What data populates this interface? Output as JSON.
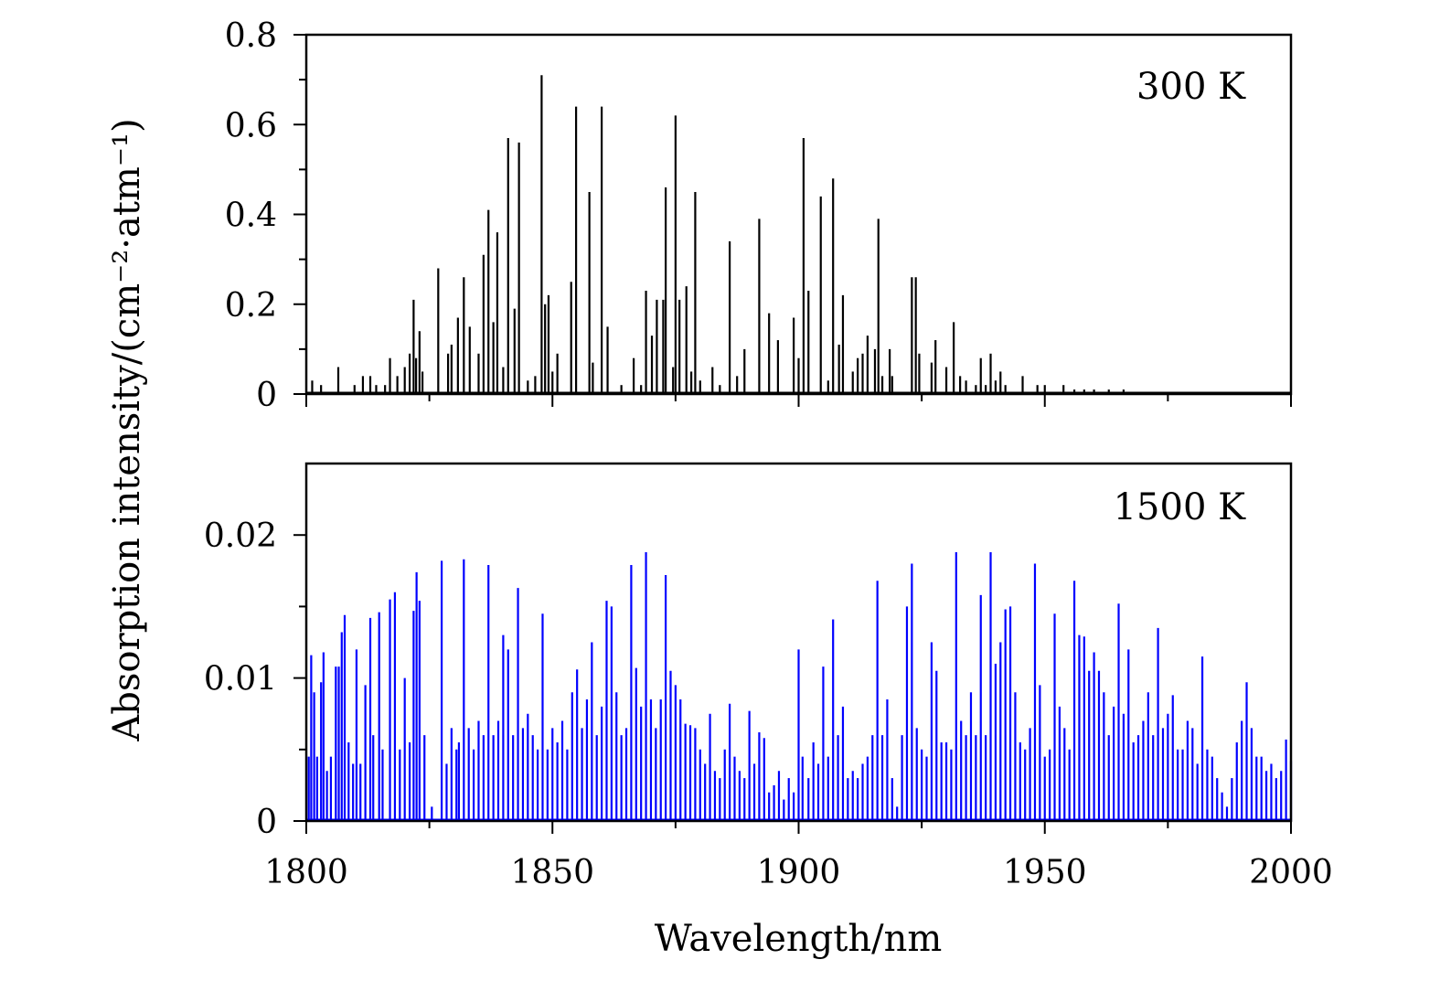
{
  "chart_data": [
    {
      "type": "line",
      "temperature_label": "300 K",
      "line_color": "#000000",
      "xlim": [
        1800,
        2000
      ],
      "ylim": [
        0,
        0.8
      ],
      "yticks": [
        "0",
        "0.2",
        "0.4",
        "0.6",
        "0.8"
      ],
      "ylabel": "",
      "xlabel": "",
      "peaks": [
        [
          1801.2,
          0.03
        ],
        [
          1803.0,
          0.02
        ],
        [
          1806.5,
          0.06
        ],
        [
          1809.8,
          0.02
        ],
        [
          1811.5,
          0.04
        ],
        [
          1813.0,
          0.04
        ],
        [
          1814.2,
          0.02
        ],
        [
          1816.0,
          0.02
        ],
        [
          1817.0,
          0.08
        ],
        [
          1818.5,
          0.04
        ],
        [
          1820.0,
          0.06
        ],
        [
          1821.0,
          0.09
        ],
        [
          1821.8,
          0.21
        ],
        [
          1822.3,
          0.08
        ],
        [
          1823.0,
          0.14
        ],
        [
          1823.6,
          0.05
        ],
        [
          1826.8,
          0.28
        ],
        [
          1828.8,
          0.09
        ],
        [
          1829.5,
          0.11
        ],
        [
          1830.8,
          0.17
        ],
        [
          1832.0,
          0.26
        ],
        [
          1833.2,
          0.15
        ],
        [
          1835.0,
          0.09
        ],
        [
          1836.0,
          0.31
        ],
        [
          1837.0,
          0.41
        ],
        [
          1838.0,
          0.16
        ],
        [
          1838.8,
          0.36
        ],
        [
          1840.0,
          0.06
        ],
        [
          1841.0,
          0.57
        ],
        [
          1842.3,
          0.19
        ],
        [
          1843.2,
          0.56
        ],
        [
          1845.0,
          0.03
        ],
        [
          1846.5,
          0.04
        ],
        [
          1847.8,
          0.71
        ],
        [
          1848.5,
          0.2
        ],
        [
          1849.2,
          0.22
        ],
        [
          1850.0,
          0.05
        ],
        [
          1851.0,
          0.09
        ],
        [
          1853.8,
          0.25
        ],
        [
          1854.8,
          0.64
        ],
        [
          1857.5,
          0.45
        ],
        [
          1858.2,
          0.07
        ],
        [
          1860.0,
          0.64
        ],
        [
          1861.2,
          0.15
        ],
        [
          1864.0,
          0.02
        ],
        [
          1866.5,
          0.08
        ],
        [
          1868.0,
          0.02
        ],
        [
          1869.0,
          0.23
        ],
        [
          1870.2,
          0.13
        ],
        [
          1871.2,
          0.21
        ],
        [
          1872.5,
          0.21
        ],
        [
          1873.0,
          0.46
        ],
        [
          1874.5,
          0.06
        ],
        [
          1875.0,
          0.62
        ],
        [
          1875.8,
          0.21
        ],
        [
          1877.2,
          0.24
        ],
        [
          1878.2,
          0.05
        ],
        [
          1879.0,
          0.45
        ],
        [
          1880.0,
          0.03
        ],
        [
          1882.5,
          0.06
        ],
        [
          1884.0,
          0.02
        ],
        [
          1886.0,
          0.34
        ],
        [
          1887.5,
          0.04
        ],
        [
          1889.0,
          0.1
        ],
        [
          1892.0,
          0.39
        ],
        [
          1894.0,
          0.18
        ],
        [
          1895.8,
          0.12
        ],
        [
          1899.0,
          0.17
        ],
        [
          1900.0,
          0.08
        ],
        [
          1901.0,
          0.57
        ],
        [
          1902.0,
          0.23
        ],
        [
          1904.5,
          0.44
        ],
        [
          1906.0,
          0.03
        ],
        [
          1907.0,
          0.48
        ],
        [
          1908.2,
          0.11
        ],
        [
          1909.0,
          0.22
        ],
        [
          1911.0,
          0.05
        ],
        [
          1912.0,
          0.08
        ],
        [
          1913.0,
          0.09
        ],
        [
          1914.0,
          0.13
        ],
        [
          1915.5,
          0.1
        ],
        [
          1916.2,
          0.39
        ],
        [
          1917.0,
          0.04
        ],
        [
          1918.5,
          0.1
        ],
        [
          1919.0,
          0.04
        ],
        [
          1923.0,
          0.26
        ],
        [
          1923.8,
          0.26
        ],
        [
          1924.5,
          0.09
        ],
        [
          1927.0,
          0.07
        ],
        [
          1927.8,
          0.12
        ],
        [
          1930.0,
          0.06
        ],
        [
          1931.5,
          0.16
        ],
        [
          1932.8,
          0.04
        ],
        [
          1934.0,
          0.03
        ],
        [
          1936.0,
          0.02
        ],
        [
          1937.0,
          0.08
        ],
        [
          1938.0,
          0.02
        ],
        [
          1939.0,
          0.09
        ],
        [
          1940.0,
          0.03
        ],
        [
          1941.0,
          0.05
        ],
        [
          1942.0,
          0.02
        ],
        [
          1945.5,
          0.04
        ],
        [
          1948.5,
          0.02
        ],
        [
          1950.0,
          0.02
        ],
        [
          1953.8,
          0.02
        ],
        [
          1956.0,
          0.01
        ],
        [
          1958.0,
          0.01
        ],
        [
          1960.0,
          0.01
        ],
        [
          1963.0,
          0.01
        ],
        [
          1966.0,
          0.01
        ],
        [
          1972.0,
          0.005
        ]
      ]
    },
    {
      "type": "line",
      "temperature_label": "1500 K",
      "line_color": "#0000ff",
      "xlim": [
        1800,
        2000
      ],
      "ylim": [
        0,
        0.025
      ],
      "yticks": [
        "0",
        "0.01",
        "0.02"
      ],
      "ylabel": "Absorption intensity/(cm⁻²·atm⁻¹)",
      "xlabel": "Wavelength/nm",
      "xticks": [
        "1800",
        "1850",
        "1900",
        "1950",
        "2000"
      ],
      "peaks": [
        [
          1800.5,
          0.0045
        ],
        [
          1801.0,
          0.0116
        ],
        [
          1801.6,
          0.009
        ],
        [
          1802.2,
          0.0045
        ],
        [
          1803.0,
          0.0097
        ],
        [
          1803.5,
          0.0118
        ],
        [
          1804.2,
          0.0035
        ],
        [
          1805.0,
          0.0045
        ],
        [
          1806.0,
          0.0108
        ],
        [
          1806.6,
          0.0108
        ],
        [
          1807.2,
          0.0132
        ],
        [
          1807.8,
          0.0144
        ],
        [
          1808.6,
          0.0055
        ],
        [
          1809.5,
          0.004
        ],
        [
          1810.2,
          0.012
        ],
        [
          1811.0,
          0.004
        ],
        [
          1812.0,
          0.0095
        ],
        [
          1813.0,
          0.0142
        ],
        [
          1813.6,
          0.006
        ],
        [
          1814.8,
          0.0146
        ],
        [
          1815.5,
          0.005
        ],
        [
          1817.0,
          0.0155
        ],
        [
          1818.0,
          0.016
        ],
        [
          1819.0,
          0.005
        ],
        [
          1820.0,
          0.01
        ],
        [
          1821.0,
          0.0055
        ],
        [
          1821.8,
          0.0147
        ],
        [
          1822.4,
          0.0174
        ],
        [
          1823.0,
          0.0154
        ],
        [
          1824.0,
          0.006
        ],
        [
          1825.5,
          0.001
        ],
        [
          1827.5,
          0.0182
        ],
        [
          1828.5,
          0.004
        ],
        [
          1829.5,
          0.0065
        ],
        [
          1830.5,
          0.005
        ],
        [
          1831.0,
          0.0055
        ],
        [
          1832.0,
          0.0183
        ],
        [
          1833.0,
          0.0065
        ],
        [
          1834.0,
          0.005
        ],
        [
          1835.0,
          0.007
        ],
        [
          1836.0,
          0.006
        ],
        [
          1837.0,
          0.0179
        ],
        [
          1838.0,
          0.006
        ],
        [
          1839.0,
          0.007
        ],
        [
          1840.0,
          0.013
        ],
        [
          1841.0,
          0.012
        ],
        [
          1842.0,
          0.006
        ],
        [
          1843.0,
          0.0163
        ],
        [
          1844.0,
          0.0065
        ],
        [
          1845.0,
          0.0075
        ],
        [
          1846.0,
          0.006
        ],
        [
          1847.0,
          0.005
        ],
        [
          1848.0,
          0.0145
        ],
        [
          1849.0,
          0.005
        ],
        [
          1850.0,
          0.0065
        ],
        [
          1851.0,
          0.0055
        ],
        [
          1852.0,
          0.007
        ],
        [
          1853.0,
          0.005
        ],
        [
          1854.0,
          0.009
        ],
        [
          1855.0,
          0.0106
        ],
        [
          1856.0,
          0.0065
        ],
        [
          1857.0,
          0.0085
        ],
        [
          1858.0,
          0.0125
        ],
        [
          1859.0,
          0.006
        ],
        [
          1860.0,
          0.008
        ],
        [
          1861.0,
          0.0154
        ],
        [
          1862.0,
          0.015
        ],
        [
          1863.0,
          0.009
        ],
        [
          1864.0,
          0.006
        ],
        [
          1865.0,
          0.0065
        ],
        [
          1866.0,
          0.0179
        ],
        [
          1867.0,
          0.0107
        ],
        [
          1868.0,
          0.008
        ],
        [
          1869.0,
          0.0188
        ],
        [
          1870.0,
          0.0085
        ],
        [
          1871.0,
          0.0065
        ],
        [
          1872.0,
          0.0085
        ],
        [
          1873.0,
          0.0172
        ],
        [
          1874.0,
          0.0105
        ],
        [
          1875.0,
          0.0095
        ],
        [
          1876.0,
          0.0085
        ],
        [
          1877.0,
          0.0068
        ],
        [
          1878.0,
          0.0067
        ],
        [
          1879.0,
          0.0065
        ],
        [
          1880.0,
          0.005
        ],
        [
          1881.0,
          0.004
        ],
        [
          1882.0,
          0.0075
        ],
        [
          1883.0,
          0.0035
        ],
        [
          1884.0,
          0.003
        ],
        [
          1885.0,
          0.005
        ],
        [
          1886.0,
          0.0082
        ],
        [
          1887.0,
          0.0045
        ],
        [
          1888.0,
          0.0035
        ],
        [
          1889.0,
          0.003
        ],
        [
          1890.0,
          0.0077
        ],
        [
          1891.0,
          0.004
        ],
        [
          1892.0,
          0.0062
        ],
        [
          1893.0,
          0.0058
        ],
        [
          1894.0,
          0.002
        ],
        [
          1895.0,
          0.0025
        ],
        [
          1896.0,
          0.0035
        ],
        [
          1897.0,
          0.0015
        ],
        [
          1898.0,
          0.003
        ],
        [
          1899.0,
          0.002
        ],
        [
          1900.0,
          0.012
        ],
        [
          1900.8,
          0.0045
        ],
        [
          1902.0,
          0.003
        ],
        [
          1903.0,
          0.0055
        ],
        [
          1904.0,
          0.004
        ],
        [
          1905.0,
          0.0108
        ],
        [
          1906.0,
          0.0045
        ],
        [
          1907.0,
          0.0141
        ],
        [
          1908.0,
          0.006
        ],
        [
          1909.0,
          0.008
        ],
        [
          1910.0,
          0.003
        ],
        [
          1911.0,
          0.0035
        ],
        [
          1912.0,
          0.003
        ],
        [
          1913.0,
          0.004
        ],
        [
          1914.0,
          0.0045
        ],
        [
          1915.0,
          0.006
        ],
        [
          1916.0,
          0.0168
        ],
        [
          1917.0,
          0.006
        ],
        [
          1918.0,
          0.0085
        ],
        [
          1919.0,
          0.003
        ],
        [
          1920.0,
          0.001
        ],
        [
          1921.0,
          0.006
        ],
        [
          1922.0,
          0.015
        ],
        [
          1923.0,
          0.018
        ],
        [
          1924.0,
          0.0065
        ],
        [
          1925.0,
          0.005
        ],
        [
          1926.0,
          0.0045
        ],
        [
          1927.0,
          0.0125
        ],
        [
          1928.0,
          0.0105
        ],
        [
          1929.0,
          0.0055
        ],
        [
          1930.0,
          0.0055
        ],
        [
          1931.0,
          0.005
        ],
        [
          1932.0,
          0.0188
        ],
        [
          1933.0,
          0.007
        ],
        [
          1934.0,
          0.006
        ],
        [
          1935.0,
          0.009
        ],
        [
          1936.0,
          0.006
        ],
        [
          1937.0,
          0.0158
        ],
        [
          1938.0,
          0.006
        ],
        [
          1939.0,
          0.0188
        ],
        [
          1940.0,
          0.011
        ],
        [
          1941.0,
          0.0125
        ],
        [
          1942.0,
          0.0148
        ],
        [
          1943.0,
          0.015
        ],
        [
          1944.0,
          0.009
        ],
        [
          1945.0,
          0.0055
        ],
        [
          1946.0,
          0.005
        ],
        [
          1947.0,
          0.0065
        ],
        [
          1948.0,
          0.018
        ],
        [
          1949.0,
          0.0095
        ],
        [
          1950.0,
          0.0045
        ],
        [
          1951.0,
          0.005
        ],
        [
          1952.0,
          0.0145
        ],
        [
          1953.0,
          0.008
        ],
        [
          1954.0,
          0.0065
        ],
        [
          1955.0,
          0.005
        ],
        [
          1956.0,
          0.0168
        ],
        [
          1957.0,
          0.013
        ],
        [
          1958.0,
          0.0129
        ],
        [
          1959.0,
          0.0105
        ],
        [
          1960.0,
          0.0118
        ],
        [
          1961.0,
          0.0105
        ],
        [
          1962.0,
          0.009
        ],
        [
          1963.0,
          0.006
        ],
        [
          1964.0,
          0.008
        ],
        [
          1965.0,
          0.0152
        ],
        [
          1966.0,
          0.0075
        ],
        [
          1967.0,
          0.012
        ],
        [
          1968.0,
          0.0055
        ],
        [
          1969.0,
          0.006
        ],
        [
          1970.0,
          0.007
        ],
        [
          1971.0,
          0.009
        ],
        [
          1972.0,
          0.006
        ],
        [
          1973.0,
          0.0135
        ],
        [
          1974.0,
          0.0065
        ],
        [
          1975.0,
          0.0075
        ],
        [
          1976.0,
          0.0088
        ],
        [
          1977.0,
          0.005
        ],
        [
          1978.0,
          0.005
        ],
        [
          1979.0,
          0.007
        ],
        [
          1980.0,
          0.0065
        ],
        [
          1981.0,
          0.004
        ],
        [
          1982.0,
          0.0115
        ],
        [
          1983.0,
          0.005
        ],
        [
          1984.0,
          0.0045
        ],
        [
          1985.0,
          0.003
        ],
        [
          1986.0,
          0.002
        ],
        [
          1987.0,
          0.001
        ],
        [
          1988.0,
          0.003
        ],
        [
          1989.0,
          0.0055
        ],
        [
          1990.0,
          0.007
        ],
        [
          1991.0,
          0.0097
        ],
        [
          1992.0,
          0.0065
        ],
        [
          1993.0,
          0.0045
        ],
        [
          1994.0,
          0.0045
        ],
        [
          1995.0,
          0.0035
        ],
        [
          1996.0,
          0.004
        ],
        [
          1997.0,
          0.003
        ],
        [
          1998.0,
          0.0035
        ],
        [
          1999.0,
          0.0057
        ],
        [
          2000.0,
          0.0042
        ]
      ]
    }
  ]
}
